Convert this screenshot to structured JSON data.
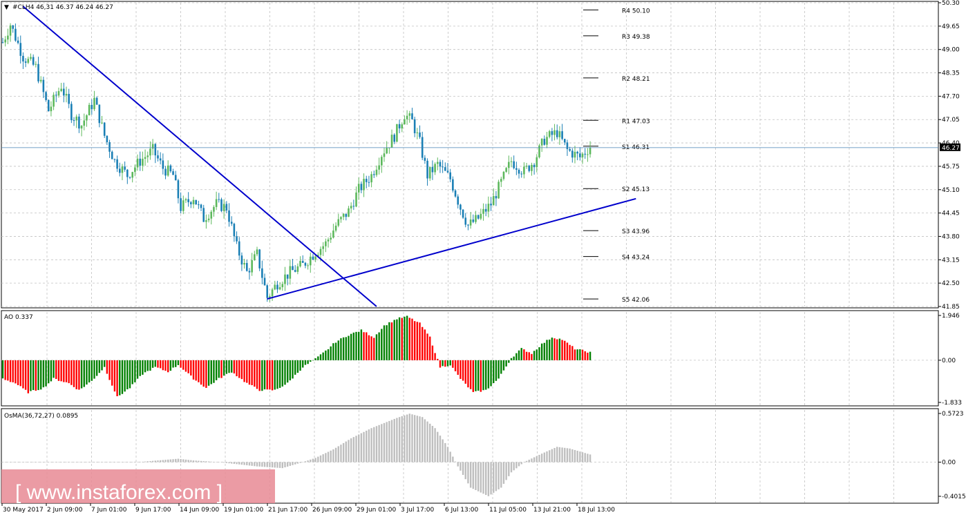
{
  "header": {
    "symbol_label": "#CLH4  46,31 46.37 46.24 46.27",
    "menu_glyph": "▼"
  },
  "watermark": "[ www.instaforex.com ]",
  "colors": {
    "bull": "#008000",
    "bear": "#ff0000",
    "candle_up": "#5cb85c",
    "candle_down": "#1a7fb5",
    "trendline": "#0000cc",
    "osma": "#bebebe",
    "grid": "#c0c0c0"
  },
  "chart_data": [
    {
      "panel": "price",
      "type": "candlestick",
      "timeframe": "H4",
      "title": "#CLH4  46,31 46.37 46.24 46.27",
      "y_ticks": [
        "50.30",
        "49.65",
        "49.00",
        "48.35",
        "47.70",
        "47.05",
        "46.40",
        "45.75",
        "45.10",
        "44.45",
        "43.80",
        "43.15",
        "42.50",
        "41.85"
      ],
      "ylim": [
        41.85,
        50.3
      ],
      "current_price": "46.27",
      "x_ticks": [
        "30 May 2017",
        "2 Jun 09:00",
        "7 Jun 01:00",
        "9 Jun 17:00",
        "14 Jun 09:00",
        "19 Jun 01:00",
        "21 Jun 17:00",
        "26 Jun 09:00",
        "29 Jun 01:00",
        "3 Jul 17:00",
        "6 Jul 13:00",
        "11 Jul 05:00",
        "13 Jul 21:00",
        "18 Jul 13:00"
      ],
      "path_points": [
        [
          0,
          49.2
        ],
        [
          3,
          49.7
        ],
        [
          8,
          48.8
        ],
        [
          13,
          48.5
        ],
        [
          18,
          47.3
        ],
        [
          23,
          48.0
        ],
        [
          27,
          47.2
        ],
        [
          31,
          46.9
        ],
        [
          36,
          47.6
        ],
        [
          40,
          46.6
        ],
        [
          44,
          45.9
        ],
        [
          49,
          45.5
        ],
        [
          54,
          45.9
        ],
        [
          59,
          46.2
        ],
        [
          63,
          45.7
        ],
        [
          67,
          45.5
        ],
        [
          70,
          44.6
        ],
        [
          75,
          44.9
        ],
        [
          79,
          44.3
        ],
        [
          84,
          44.7
        ],
        [
          88,
          44.6
        ],
        [
          92,
          43.5
        ],
        [
          96,
          42.8
        ],
        [
          100,
          43.3
        ],
        [
          104,
          42.1
        ],
        [
          108,
          42.5
        ],
        [
          113,
          42.8
        ],
        [
          118,
          43.0
        ],
        [
          122,
          43.3
        ],
        [
          127,
          43.6
        ],
        [
          131,
          44.1
        ],
        [
          136,
          44.5
        ],
        [
          140,
          45.1
        ],
        [
          145,
          45.5
        ],
        [
          149,
          46.1
        ],
        [
          154,
          46.6
        ],
        [
          158,
          47.2
        ],
        [
          161,
          47.0
        ],
        [
          164,
          46.4
        ],
        [
          167,
          45.5
        ],
        [
          171,
          45.8
        ],
        [
          176,
          45.4
        ],
        [
          180,
          44.6
        ],
        [
          183,
          44.1
        ],
        [
          187,
          44.3
        ],
        [
          192,
          44.7
        ],
        [
          196,
          45.3
        ],
        [
          200,
          45.9
        ],
        [
          205,
          45.6
        ],
        [
          209,
          45.9
        ],
        [
          213,
          46.5
        ],
        [
          218,
          46.7
        ],
        [
          222,
          46.2
        ],
        [
          227,
          46.0
        ],
        [
          231,
          46.3
        ]
      ],
      "pivots": [
        {
          "name": "R4",
          "label": "R4 50.10",
          "value": 50.1
        },
        {
          "name": "R3",
          "label": "R3 49.38",
          "value": 49.38
        },
        {
          "name": "R2",
          "label": "R2 48.21",
          "value": 48.21
        },
        {
          "name": "R1",
          "label": "R1 47.03",
          "value": 47.03
        },
        {
          "name": "S1",
          "label": "S1 46.31",
          "value": 46.31
        },
        {
          "name": "S2",
          "label": "S2 45.13",
          "value": 45.13
        },
        {
          "name": "S3",
          "label": "S3 43.96",
          "value": 43.96
        },
        {
          "name": "S4",
          "label": "S4 43.24",
          "value": 43.24
        },
        {
          "name": "S5",
          "label": "S5 42.06",
          "value": 42.06
        }
      ],
      "trendlines": [
        {
          "name": "descending",
          "from": [
            8,
            50.2
          ],
          "to": [
            147,
            41.85
          ]
        },
        {
          "name": "ascending",
          "from": [
            104,
            42.06
          ],
          "to": [
            249,
            44.85
          ]
        }
      ]
    },
    {
      "panel": "ao",
      "type": "bar",
      "title": "AO 0.337",
      "y_ticks": [
        "1.946",
        "0.00",
        "-1.833"
      ],
      "ylim": [
        -1.833,
        1.946
      ],
      "control_points": [
        [
          0,
          -0.8
        ],
        [
          5,
          -1.0
        ],
        [
          10,
          -1.4
        ],
        [
          16,
          -1.2
        ],
        [
          20,
          -0.8
        ],
        [
          26,
          -1.0
        ],
        [
          30,
          -1.3
        ],
        [
          35,
          -0.9
        ],
        [
          40,
          -0.3
        ],
        [
          45,
          -1.6
        ],
        [
          50,
          -1.2
        ],
        [
          55,
          -0.6
        ],
        [
          60,
          -0.3
        ],
        [
          65,
          -0.5
        ],
        [
          69,
          -0.2
        ],
        [
          75,
          -0.8
        ],
        [
          80,
          -1.2
        ],
        [
          85,
          -0.8
        ],
        [
          90,
          -0.5
        ],
        [
          96,
          -1.0
        ],
        [
          101,
          -1.3
        ],
        [
          107,
          -1.3
        ],
        [
          112,
          -1.0
        ],
        [
          118,
          -0.3
        ],
        [
          123,
          0.05
        ],
        [
          127,
          0.4
        ],
        [
          131,
          0.8
        ],
        [
          136,
          1.1
        ],
        [
          141,
          1.3
        ],
        [
          146,
          1.0
        ],
        [
          150,
          1.5
        ],
        [
          155,
          1.8
        ],
        [
          159,
          1.9
        ],
        [
          164,
          1.6
        ],
        [
          168,
          1.0
        ],
        [
          172,
          -0.3
        ],
        [
          176,
          -0.2
        ],
        [
          180,
          -0.8
        ],
        [
          185,
          -1.4
        ],
        [
          190,
          -1.3
        ],
        [
          195,
          -0.8
        ],
        [
          200,
          0.1
        ],
        [
          204,
          0.5
        ],
        [
          208,
          0.3
        ],
        [
          212,
          0.7
        ],
        [
          216,
          1.0
        ],
        [
          220,
          0.9
        ],
        [
          225,
          0.5
        ],
        [
          231,
          0.34
        ]
      ]
    },
    {
      "panel": "osma",
      "type": "bar",
      "title": "OsMA(36,72,27) 0.0895",
      "y_ticks": [
        "0.5723",
        "0.00",
        "-0.4015"
      ],
      "ylim": [
        -0.4015,
        0.5723
      ],
      "control_points": [
        [
          0,
          0
        ],
        [
          40,
          0.002
        ],
        [
          55,
          0.005
        ],
        [
          69,
          0.04
        ],
        [
          75,
          0.02
        ],
        [
          85,
          0.0
        ],
        [
          100,
          -0.05
        ],
        [
          110,
          -0.07
        ],
        [
          118,
          0.0
        ],
        [
          123,
          0.05
        ],
        [
          130,
          0.15
        ],
        [
          137,
          0.28
        ],
        [
          145,
          0.4
        ],
        [
          155,
          0.52
        ],
        [
          160,
          0.57
        ],
        [
          165,
          0.53
        ],
        [
          170,
          0.4
        ],
        [
          175,
          0.18
        ],
        [
          179,
          -0.05
        ],
        [
          184,
          -0.3
        ],
        [
          191,
          -0.4
        ],
        [
          196,
          -0.3
        ],
        [
          200,
          -0.12
        ],
        [
          205,
          0.0
        ],
        [
          212,
          0.1
        ],
        [
          218,
          0.18
        ],
        [
          223,
          0.16
        ],
        [
          231,
          0.09
        ]
      ]
    }
  ]
}
